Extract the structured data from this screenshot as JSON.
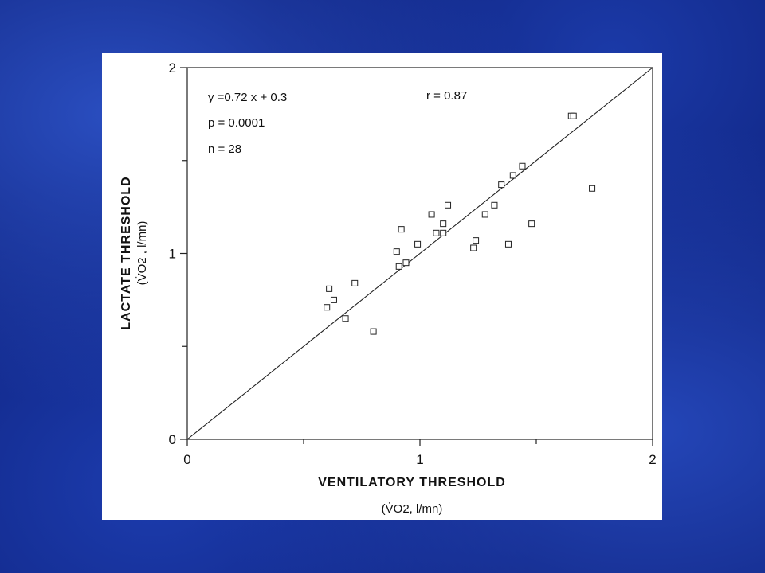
{
  "chart_data": {
    "type": "scatter",
    "xlabel": "VENTILATORY THRESHOLD",
    "xunit": "(V̇O2, l/mn)",
    "ylabel": "LACTATE THRESHOLD",
    "yunit": "(V̇O2 , l/mn)",
    "xlim": [
      0,
      2
    ],
    "ylim": [
      0,
      2
    ],
    "xticks": [
      "0",
      "1",
      "2"
    ],
    "yticks": [
      "0",
      "1",
      "2"
    ],
    "grid": false,
    "annotations": {
      "equation": "y =0.72 x + 0.3",
      "r": "r = 0.87",
      "p": "p = 0.0001",
      "n": "n = 28"
    },
    "fit_line": {
      "from": [
        0,
        0
      ],
      "to": [
        2,
        2
      ]
    },
    "points": [
      [
        0.6,
        0.71
      ],
      [
        0.61,
        0.81
      ],
      [
        0.63,
        0.75
      ],
      [
        0.68,
        0.65
      ],
      [
        0.72,
        0.84
      ],
      [
        0.8,
        0.58
      ],
      [
        0.9,
        1.01
      ],
      [
        0.91,
        0.93
      ],
      [
        0.92,
        1.13
      ],
      [
        0.94,
        0.95
      ],
      [
        0.99,
        1.05
      ],
      [
        1.05,
        1.21
      ],
      [
        1.07,
        1.11
      ],
      [
        1.1,
        1.11
      ],
      [
        1.1,
        1.16
      ],
      [
        1.12,
        1.26
      ],
      [
        1.23,
        1.03
      ],
      [
        1.24,
        1.07
      ],
      [
        1.28,
        1.21
      ],
      [
        1.32,
        1.26
      ],
      [
        1.35,
        1.37
      ],
      [
        1.38,
        1.05
      ],
      [
        1.4,
        1.42
      ],
      [
        1.44,
        1.47
      ],
      [
        1.48,
        1.16
      ],
      [
        1.65,
        1.74
      ],
      [
        1.66,
        1.74
      ],
      [
        1.74,
        1.35
      ]
    ]
  }
}
